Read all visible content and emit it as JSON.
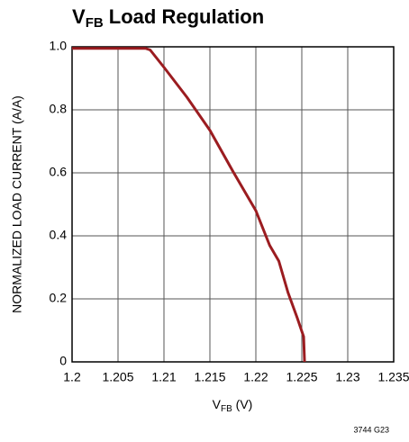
{
  "chart_data": {
    "type": "line",
    "title": [
      "V",
      "FB",
      " Load Regulation"
    ],
    "xlabel": [
      "V",
      "FB",
      " (V)"
    ],
    "ylabel": "NORMALIZED LOAD CURRENT (A/A)",
    "note": "3744 G23",
    "x": [
      1.2,
      1.208,
      1.2085,
      1.21,
      1.2125,
      1.215,
      1.2175,
      1.22,
      1.2215,
      1.2225,
      1.2235,
      1.2245,
      1.2252,
      1.2253
    ],
    "series": [
      {
        "color": "#9b1c20",
        "values": [
          0.995,
          0.995,
          0.99,
          0.935,
          0.84,
          0.735,
          0.605,
          0.48,
          0.37,
          0.32,
          0.22,
          0.14,
          0.08,
          0
        ]
      }
    ],
    "xlim": [
      1.2,
      1.235
    ],
    "xticks": [
      1.2,
      1.205,
      1.21,
      1.215,
      1.22,
      1.225,
      1.23,
      1.235
    ],
    "ylim": [
      0,
      1
    ],
    "yticks": [
      0,
      0.2,
      0.4,
      0.6,
      0.8,
      {
        "value": 1,
        "label": "1.0"
      }
    ],
    "grid": true
  }
}
